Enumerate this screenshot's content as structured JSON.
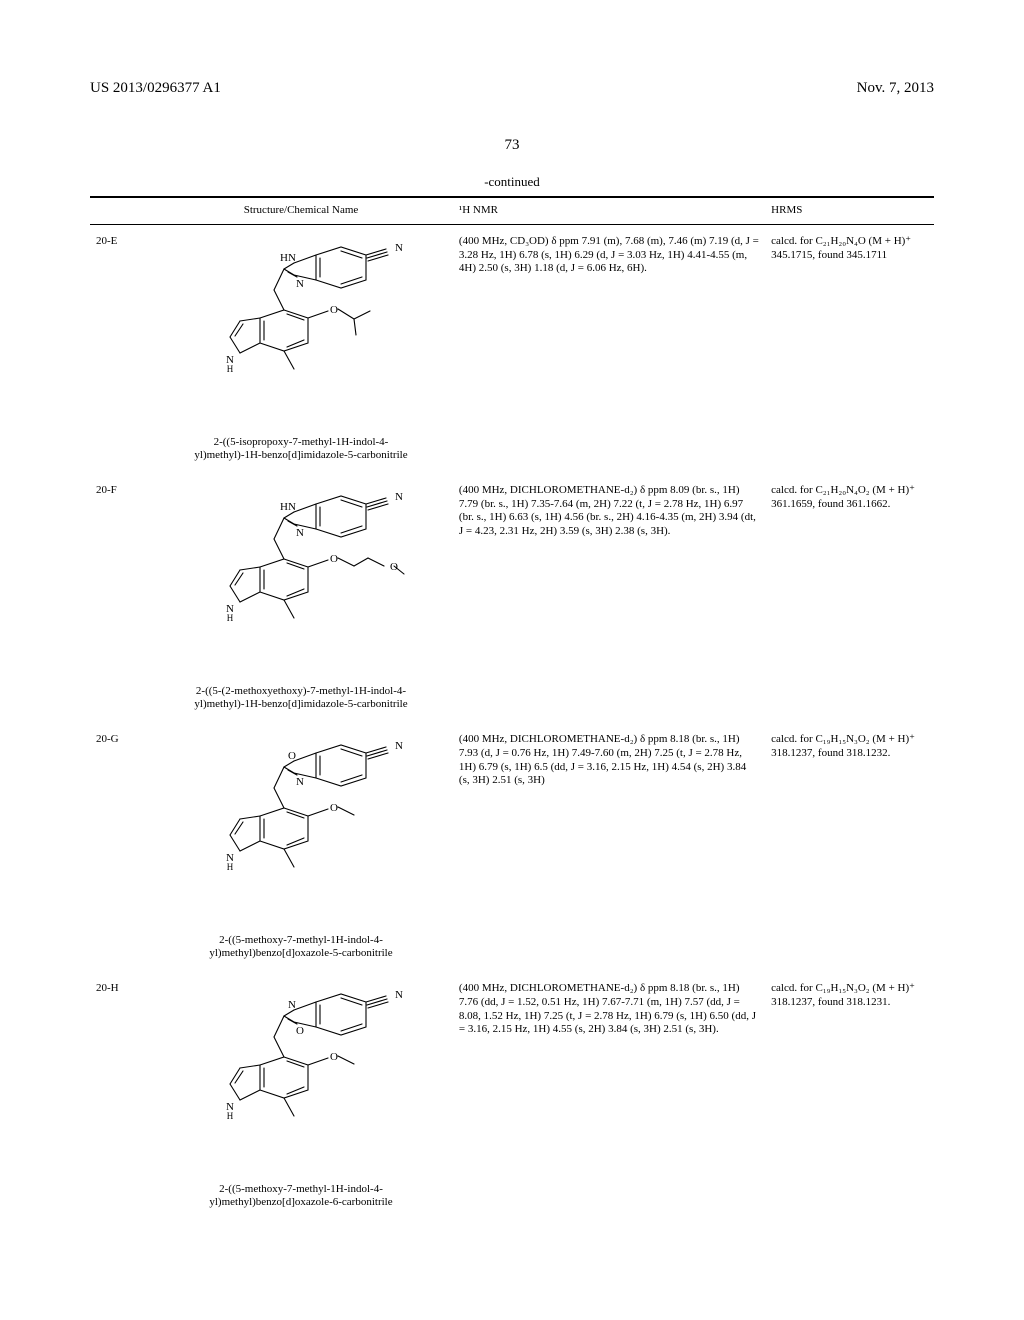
{
  "header": {
    "left": "US 2013/0296377 A1",
    "right": "Nov. 7, 2013"
  },
  "page_number": "73",
  "table": {
    "continued_label": "-continued",
    "columns": {
      "id": "",
      "structure": "Structure/Chemical Name",
      "nmr": "¹H NMR",
      "hrms": "HRMS"
    },
    "rows": [
      {
        "id": "20-E",
        "name_line1": "2-((5-isopropoxy-7-methyl-1H-indol-4-",
        "name_line2": "yl)methyl)-1H-benzo[d]imidazole-5-carbonitrile",
        "structure_type": "benzimidazole",
        "r_group": "isopropoxy",
        "nmr": "(400 MHz, CD₃OD) δ ppm 7.91 (m), 7.68 (m), 7.46 (m) 7.19 (d, J = 3.28 Hz, 1H) 6.78 (s, 1H) 6.29 (d, J = 3.03 Hz, 1H) 4.41-4.55 (m, 4H) 2.50 (s, 3H) 1.18 (d, J = 6.06 Hz, 6H).",
        "hrms": "calcd. for C₂₁H₂₀N₄O (M + H)⁺ 345.1715, found 345.1711"
      },
      {
        "id": "20-F",
        "name_line1": "2-((5-(2-methoxyethoxy)-7-methyl-1H-indol-4-",
        "name_line2": "yl)methyl)-1H-benzo[d]imidazole-5-carbonitrile",
        "structure_type": "benzimidazole",
        "r_group": "methoxyethoxy",
        "nmr": "(400 MHz, DICHLOROMETHANE-d₂) δ ppm 8.09 (br. s., 1H) 7.79 (br. s., 1H) 7.35-7.64 (m, 2H) 7.22 (t, J = 2.78 Hz, 1H) 6.97 (br. s., 1H) 6.63 (s, 1H) 4.56 (br. s., 2H) 4.16-4.35 (m, 2H) 3.94 (dt, J = 4.23, 2.31 Hz, 2H) 3.59 (s, 3H) 2.38 (s, 3H).",
        "hrms": "calcd. for C₂₁H₂₀N₄O₂ (M + H)⁺ 361.1659, found 361.1662."
      },
      {
        "id": "20-G",
        "name_line1": "2-((5-methoxy-7-methyl-1H-indol-4-",
        "name_line2": "yl)methyl)benzo[d]oxazole-5-carbonitrile",
        "structure_type": "benzoxazole-5",
        "r_group": "methoxy",
        "nmr": "(400 MHz, DICHLOROMETHANE-d₂) δ ppm 8.18 (br. s., 1H) 7.93 (d, J = 0.76 Hz, 1H) 7.49-7.60 (m, 2H) 7.25 (t, J = 2.78 Hz, 1H) 6.79 (s, 1H) 6.5 (dd, J = 3.16, 2.15 Hz, 1H) 4.54 (s, 2H) 3.84 (s, 3H) 2.51 (s, 3H)",
        "hrms": "calcd. for C₁₉H₁₅N₃O₂ (M + H)⁺ 318.1237, found 318.1232."
      },
      {
        "id": "20-H",
        "name_line1": "2-((5-methoxy-7-methyl-1H-indol-4-",
        "name_line2": "yl)methyl)benzo[d]oxazole-6-carbonitrile",
        "structure_type": "benzoxazole-6",
        "r_group": "methoxy",
        "nmr": "(400 MHz, DICHLOROMETHANE-d₂) δ ppm 8.18 (br. s., 1H) 7.76 (dd, J = 1.52, 0.51 Hz, 1H) 7.67-7.71 (m, 1H) 7.57 (dd, J = 8.08, 1.52 Hz, 1H) 7.25 (t, J = 2.78 Hz, 1H) 6.79 (s, 1H) 6.50 (dd, J = 3.16, 2.15 Hz, 1H) 4.55 (s, 2H) 3.84 (s, 3H) 2.51 (s, 3H).",
        "hrms": "calcd. for C₁₉H₁₅N₃O₂ (M + H)⁺ 318.1237, found 318.1231."
      }
    ]
  },
  "style": {
    "background_color": "#ffffff",
    "text_color": "#000000",
    "body_font": "Times New Roman",
    "body_font_size_pt": 11,
    "header_font_size_pt": 15,
    "svg_stroke": "#000000",
    "svg_stroke_width": 1.1
  }
}
